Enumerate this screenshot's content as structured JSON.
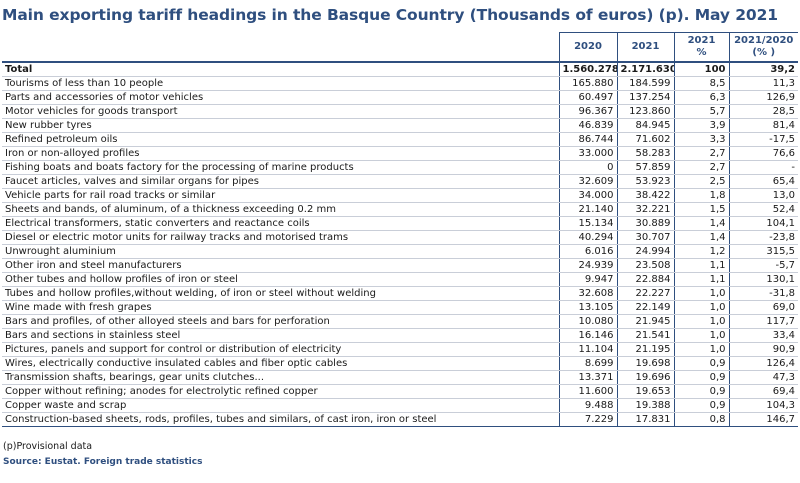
{
  "title": "Main exporting tariff headings in the Basque Country (Thousands of euros) (p). May 2021",
  "columns": {
    "c2020": "2020",
    "c2021": "2021",
    "share_top": "2021",
    "share_bottom": "%",
    "change_top": "2021/2020",
    "change_bottom": "(% )"
  },
  "rows": [
    {
      "label": "Total",
      "v2020": "1.560.278",
      "v2021": "2.171.630",
      "share": "100",
      "change": "39,2"
    },
    {
      "label": "Tourisms of less than 10 people",
      "v2020": "165.880",
      "v2021": "184.599",
      "share": "8,5",
      "change": "11,3"
    },
    {
      "label": "Parts and accessories of motor vehicles",
      "v2020": "60.497",
      "v2021": "137.254",
      "share": "6,3",
      "change": "126,9"
    },
    {
      "label": "Motor vehicles for goods transport",
      "v2020": "96.367",
      "v2021": "123.860",
      "share": "5,7",
      "change": "28,5"
    },
    {
      "label": "New rubber tyres",
      "v2020": "46.839",
      "v2021": "84.945",
      "share": "3,9",
      "change": "81,4"
    },
    {
      "label": "Refined petroleum oils",
      "v2020": "86.744",
      "v2021": "71.602",
      "share": "3,3",
      "change": "-17,5"
    },
    {
      "label": "Iron or non-alloyed profiles",
      "v2020": "33.000",
      "v2021": "58.283",
      "share": "2,7",
      "change": "76,6"
    },
    {
      "label": "Fishing boats and boats factory for the processing of marine products",
      "v2020": "0",
      "v2021": "57.859",
      "share": "2,7",
      "change": "-"
    },
    {
      "label": "Faucet articles, valves and similar organs for pipes",
      "v2020": "32.609",
      "v2021": "53.923",
      "share": "2,5",
      "change": "65,4"
    },
    {
      "label": "Vehicle parts for rail road tracks or similar",
      "v2020": "34.000",
      "v2021": "38.422",
      "share": "1,8",
      "change": "13,0"
    },
    {
      "label": "Sheets and bands, of aluminum, of a thickness exceeding 0.2 mm",
      "v2020": "21.140",
      "v2021": "32.221",
      "share": "1,5",
      "change": "52,4"
    },
    {
      "label": "Electrical transformers, static converters and reactance coils",
      "v2020": "15.134",
      "v2021": "30.889",
      "share": "1,4",
      "change": "104,1"
    },
    {
      "label": "Diesel or electric motor units for railway tracks and motorised trams",
      "v2020": "40.294",
      "v2021": "30.707",
      "share": "1,4",
      "change": "-23,8"
    },
    {
      "label": "Unwrought aluminium",
      "v2020": "6.016",
      "v2021": "24.994",
      "share": "1,2",
      "change": "315,5"
    },
    {
      "label": "Other iron and steel manufacturers",
      "v2020": "24.939",
      "v2021": "23.508",
      "share": "1,1",
      "change": "-5,7"
    },
    {
      "label": "Other tubes and hollow profiles of iron or steel",
      "v2020": "9.947",
      "v2021": "22.884",
      "share": "1,1",
      "change": "130,1"
    },
    {
      "label": "Tubes and hollow profiles,without welding, of iron or steel without welding",
      "v2020": "32.608",
      "v2021": "22.227",
      "share": "1,0",
      "change": "-31,8"
    },
    {
      "label": "Wine made with fresh grapes",
      "v2020": "13.105",
      "v2021": "22.149",
      "share": "1,0",
      "change": "69,0"
    },
    {
      "label": "Bars and profiles, of other alloyed steels and bars for perforation",
      "v2020": "10.080",
      "v2021": "21.945",
      "share": "1,0",
      "change": "117,7"
    },
    {
      "label": "Bars and sections in stainless steel",
      "v2020": "16.146",
      "v2021": "21.541",
      "share": "1,0",
      "change": "33,4"
    },
    {
      "label": "Pictures, panels and support for control or distribution of electricity",
      "v2020": "11.104",
      "v2021": "21.195",
      "share": "1,0",
      "change": "90,9"
    },
    {
      "label": "Wires, electrically conductive insulated cables and fiber optic cables",
      "v2020": "8.699",
      "v2021": "19.698",
      "share": "0,9",
      "change": "126,4"
    },
    {
      "label": "Transmission shafts, bearings, gear units clutches...",
      "v2020": "13.371",
      "v2021": "19.696",
      "share": "0,9",
      "change": "47,3"
    },
    {
      "label": "Copper without refining; anodes for electrolytic refined copper",
      "v2020": "11.600",
      "v2021": "19.653",
      "share": "0,9",
      "change": "69,4"
    },
    {
      "label": "Copper waste and scrap",
      "v2020": "9.488",
      "v2021": "19.388",
      "share": "0,9",
      "change": "104,3"
    },
    {
      "label": "Construction-based sheets, rods, profiles, tubes and similars, of cast iron, iron or steel",
      "v2020": "7.229",
      "v2021": "17.831",
      "share": "0,8",
      "change": "146,7"
    }
  ],
  "footnote": "(p)Provisional data",
  "source": "Source: Eustat. Foreign trade statistics",
  "colors": {
    "accent": "#2f4f7f",
    "text": "#1a1a1a",
    "row_rule": "#c9ced8"
  }
}
